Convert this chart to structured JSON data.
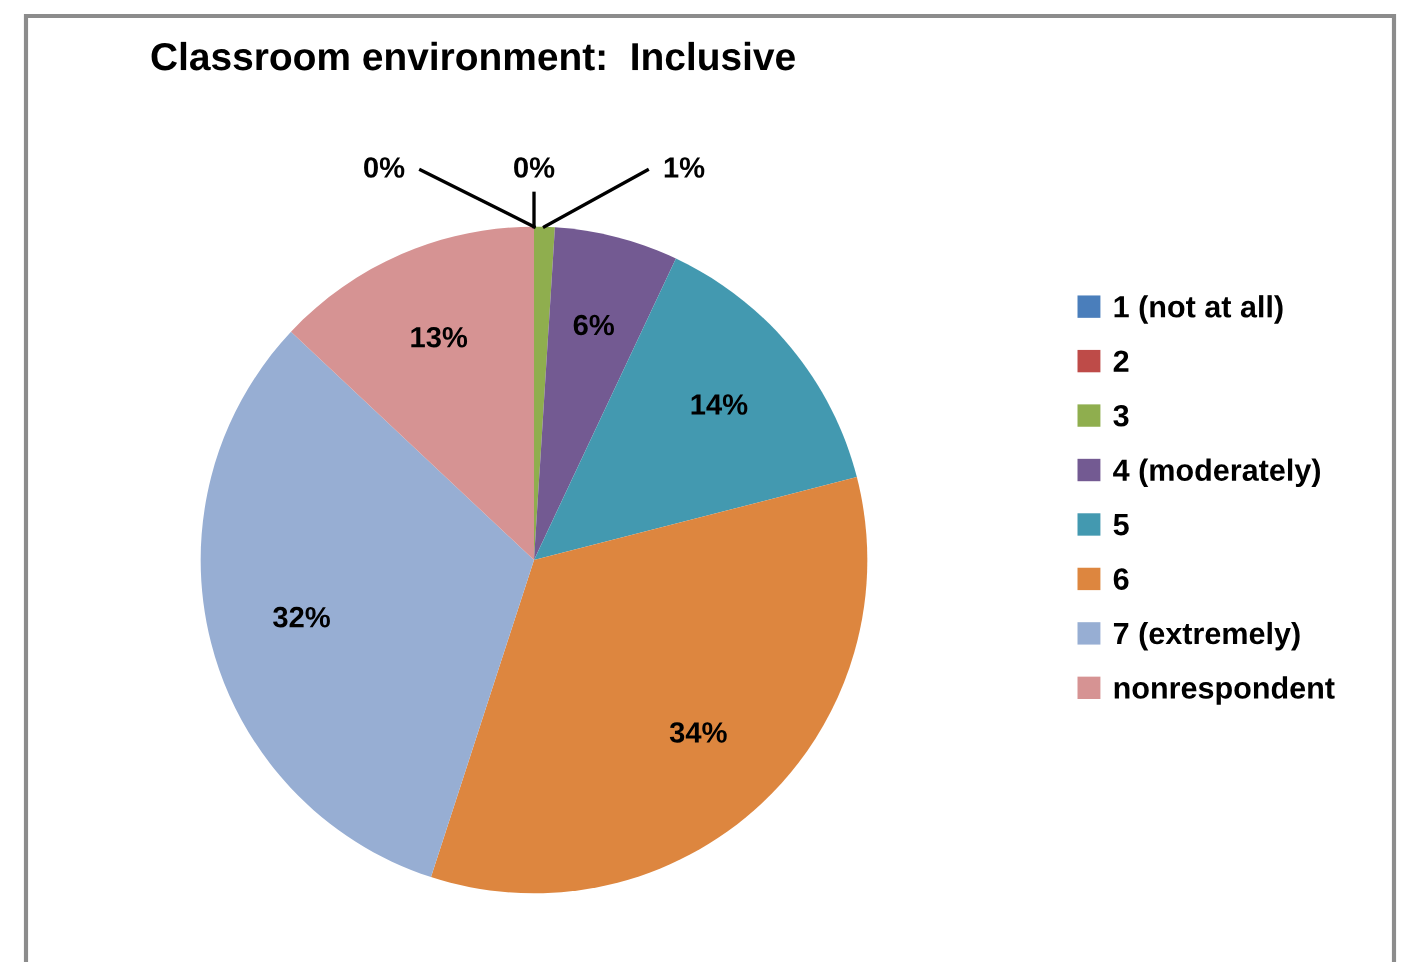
{
  "chart_data": {
    "type": "pie",
    "title": "Classroom environment:  Inclusive",
    "categories": [
      "1 (not at all)",
      "2",
      "3",
      "4 (moderately)",
      "5",
      "6",
      "7 (extremely)",
      "nonrespondent"
    ],
    "values": [
      0,
      0,
      1,
      6,
      14,
      34,
      32,
      13
    ],
    "colors": [
      "#4a7ebb",
      "#be4b48",
      "#8fae4e",
      "#735a92",
      "#4399b0",
      "#dd863f",
      "#97aed3",
      "#d69393"
    ],
    "value_labels": [
      "0%",
      "0%",
      "1%",
      "6%",
      "14%",
      "34%",
      "32%",
      "13%"
    ],
    "legend": "right"
  }
}
